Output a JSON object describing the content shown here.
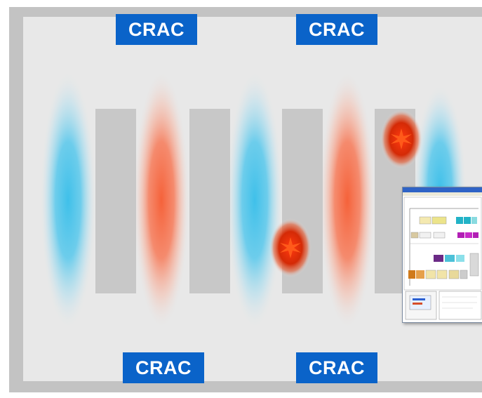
{
  "crac_units": {
    "top_left": "CRAC",
    "top_right": "CRAC",
    "bottom_left": "CRAC",
    "bottom_right": "CRAC"
  },
  "colors": {
    "crac_fill": "#0a63c9",
    "crac_text": "#ffffff",
    "cold_aisle": "#3fc0ea",
    "hot_aisle": "#f5623a",
    "hot_spot": "#e02a08",
    "rack": "#c8c8c8",
    "room_floor": "#e8e8e8",
    "room_wall": "#c3c3c3"
  },
  "legend": {
    "cold_aisle_icon": "cold-air-plume",
    "hot_aisle_icon": "hot-air-plume",
    "hot_spot_icon": "hot-spot-starburst"
  }
}
